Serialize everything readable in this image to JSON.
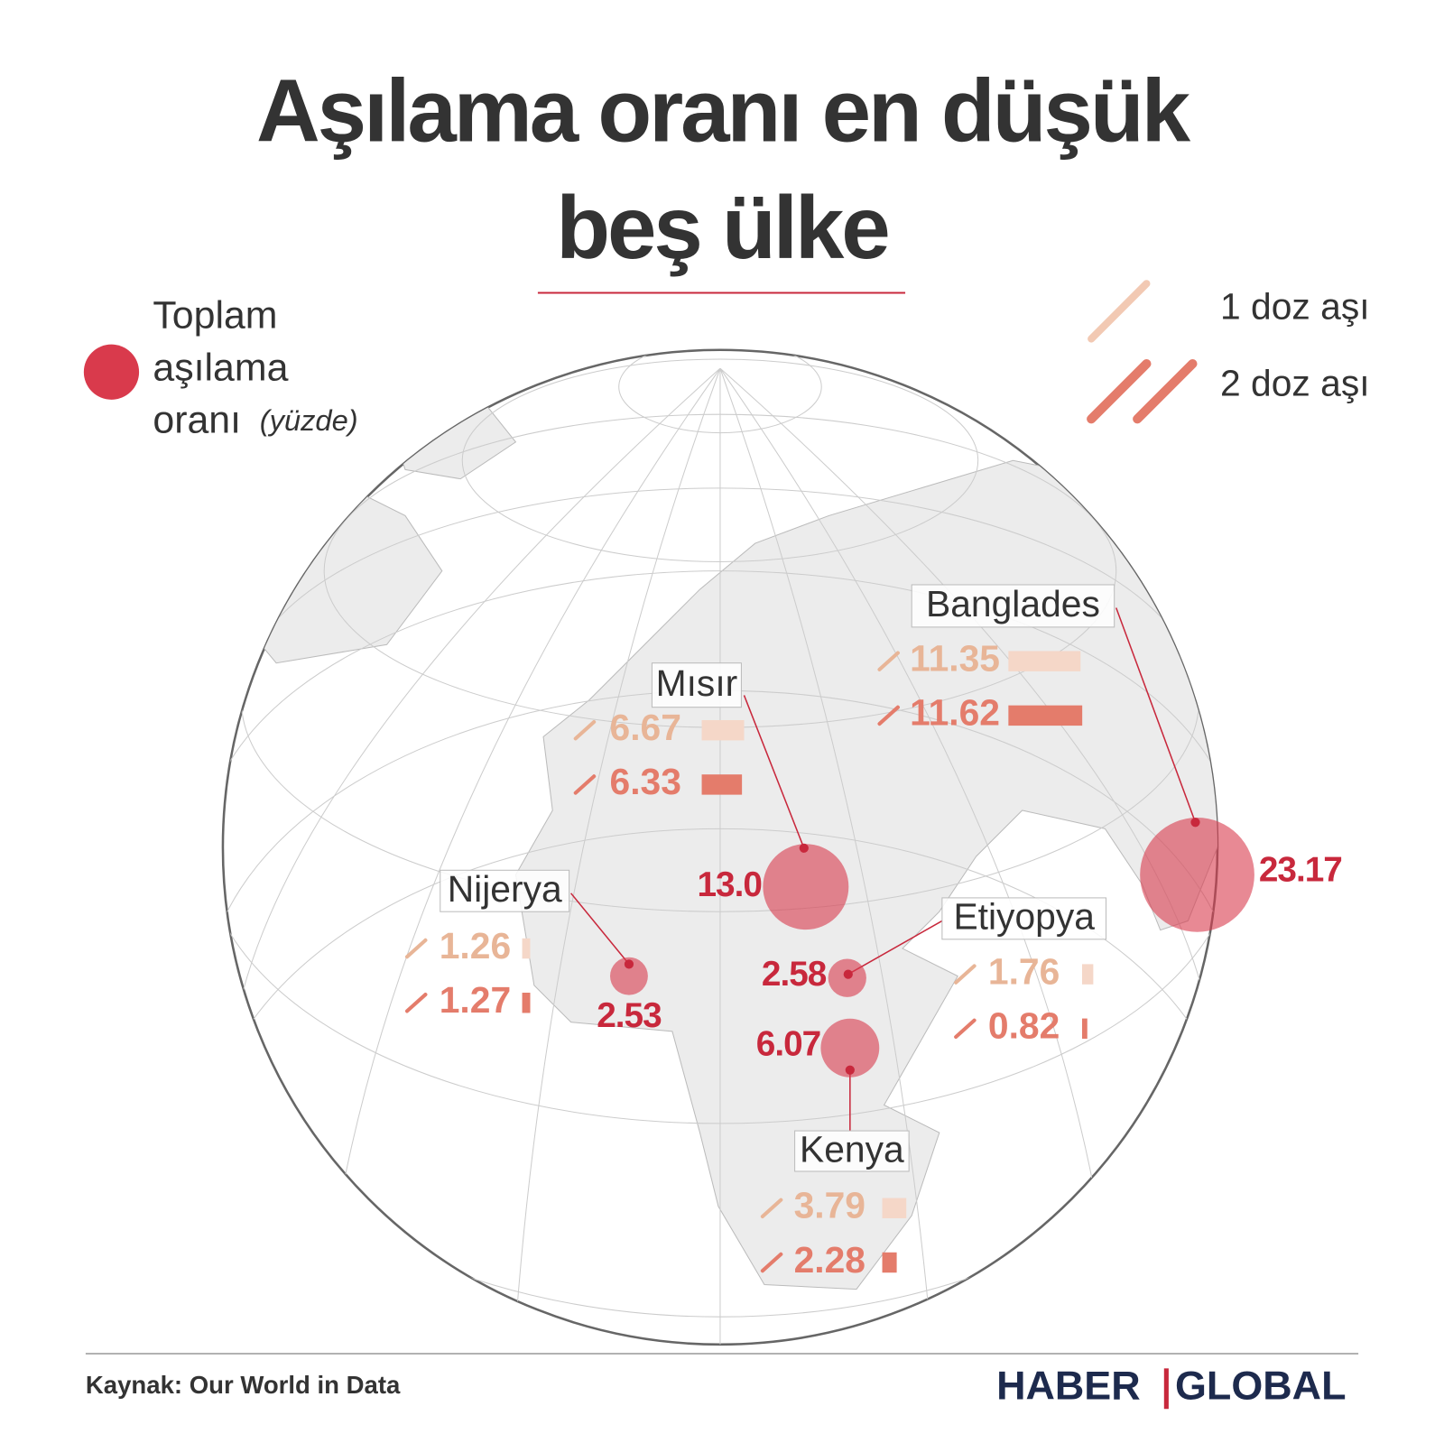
{
  "title": [
    "Aşılama oranı en düşük",
    "beş ülke"
  ],
  "legend": {
    "total": [
      "Toplam",
      "aşılama",
      "oranı"
    ],
    "unit": "(yüzde)",
    "dose1": "1 doz aşı",
    "dose2": "2 doz aşı"
  },
  "countries": [
    {
      "name": "Mısır",
      "total": {
        "value": 13,
        "label": "13.0"
      },
      "dose1": 6.67,
      "dose2": 6.33
    },
    {
      "name": "Banglades",
      "total": 23.17,
      "dose1": 11.35,
      "dose2": 11.62
    },
    {
      "name": "Nijerya",
      "total": 2.53,
      "dose1": 1.26,
      "dose2": 1.27
    },
    {
      "name": "Etiyopya",
      "total": 2.58,
      "dose1": 1.76,
      "dose2": 0.82
    },
    {
      "name": "Kenya",
      "total": 6.07,
      "dose1": 3.79,
      "dose2": 2.28
    }
  ],
  "source": "Kaynak: Our World in Data",
  "logo": [
    "HABER",
    "GLOBAL"
  ]
}
